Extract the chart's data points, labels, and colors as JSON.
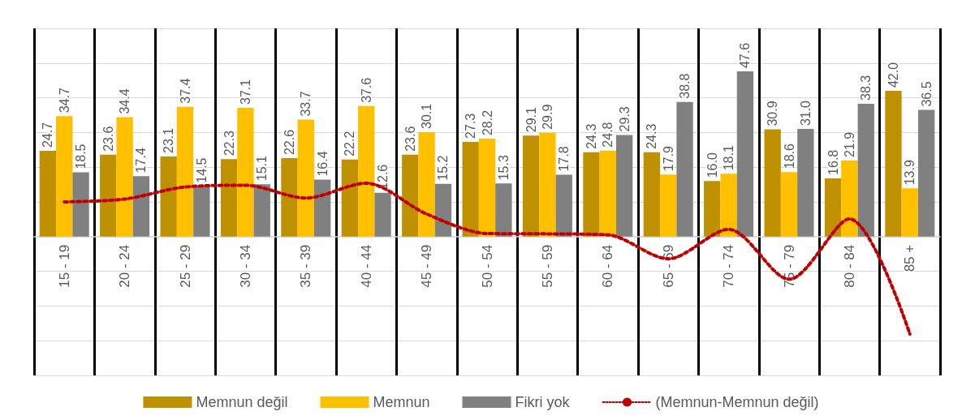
{
  "chart_data": {
    "type": "bar",
    "categories": [
      "15 - 19",
      "20 - 24",
      "25 - 29",
      "30 - 34",
      "35 - 39",
      "40 - 44",
      "45 - 49",
      "50 - 54",
      "55 - 59",
      "60 - 64",
      "65 - 69",
      "70 - 74",
      "75 - 79",
      "80 - 84",
      "85 +"
    ],
    "series": [
      {
        "name": "Memnun değil",
        "color": "#bf9000",
        "values": [
          24.7,
          23.6,
          23.1,
          22.3,
          22.6,
          22.2,
          23.6,
          27.3,
          29.1,
          24.3,
          24.3,
          16.0,
          30.9,
          16.8,
          42.0
        ],
        "value_labels": [
          "24.7",
          "23.6",
          "23.1",
          "22.3",
          "22.6",
          "22.2",
          "23.6",
          "27.3",
          "29.1",
          "24.3",
          "24.3",
          "16.0",
          "30.9",
          "16.8",
          "42.0"
        ]
      },
      {
        "name": "Memnun",
        "color": "#ffc000",
        "values": [
          34.7,
          34.4,
          37.4,
          37.1,
          33.7,
          37.6,
          30.1,
          28.2,
          29.9,
          24.8,
          17.9,
          18.1,
          18.6,
          21.9,
          13.9
        ],
        "value_labels": [
          "34.7",
          "34.4",
          "37.4",
          "37.1",
          "33.7",
          "37.6",
          "30.1",
          "28.2",
          "29.9",
          "24.8",
          "17.9",
          "18.1",
          "18.6",
          "21.9",
          "13.9"
        ]
      },
      {
        "name": "Fikri yok",
        "color": "#808080",
        "values": [
          18.5,
          17.4,
          14.5,
          15.1,
          16.4,
          12.6,
          15.2,
          15.3,
          17.8,
          29.3,
          38.8,
          47.6,
          31.0,
          38.3,
          36.5
        ],
        "value_labels": [
          "18.5",
          "17.4",
          "14.5",
          "15.1",
          "16.4",
          "12.6",
          "15.2",
          "15.3",
          "17.8",
          "29.3",
          "38.8",
          "47.6",
          "31.0",
          "38.3",
          "36.5"
        ]
      },
      {
        "name": "(Memnun-Memnun değil)",
        "type": "line",
        "color": "#c00000",
        "line_style": "dotted",
        "marker": "none",
        "values": [
          10.0,
          10.8,
          14.3,
          14.8,
          11.1,
          15.4,
          6.5,
          0.9,
          0.8,
          0.5,
          -6.4,
          2.1,
          -12.3,
          5.1,
          -28.1
        ]
      }
    ],
    "ylim": [
      -40,
      60
    ],
    "yticks": [
      {
        "value": -40,
        "label": null
      },
      {
        "value": -30,
        "label": null
      },
      {
        "value": -20,
        "label": null
      },
      {
        "value": -10,
        "label": null
      },
      {
        "value": 0,
        "label": null
      },
      {
        "value": 10,
        "label": null
      },
      {
        "value": 20,
        "label": null
      },
      {
        "value": 30,
        "label": null
      },
      {
        "value": 40,
        "label": null
      },
      {
        "value": 50,
        "label": null
      },
      {
        "value": 60,
        "label": null
      }
    ],
    "grid": true,
    "legend": "bottom",
    "tick_labels": "x"
  }
}
